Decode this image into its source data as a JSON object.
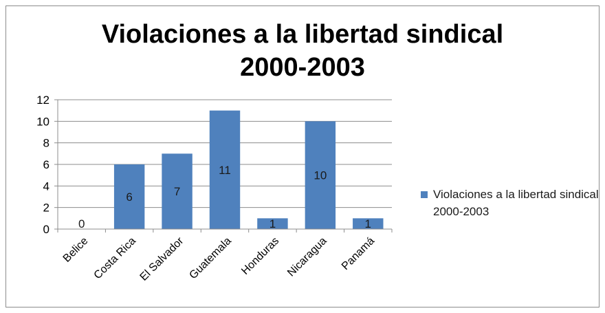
{
  "chart_data": {
    "type": "bar",
    "title": "Violaciones a la libertad sindical\n2000-2003",
    "categories": [
      "Belice",
      "Costa Rica",
      "El Salvador",
      "Guatemala",
      "Honduras",
      "Nicaragua",
      "Panamá"
    ],
    "series": [
      {
        "name": "Violaciones a la libertad sindical 2000-2003",
        "values": [
          0,
          6,
          7,
          11,
          1,
          10,
          1
        ]
      }
    ],
    "yticks": [
      "0",
      "2",
      "4",
      "6",
      "8",
      "10",
      "12"
    ],
    "ylim": [
      0,
      12
    ],
    "grid": true,
    "legend": "right",
    "colors": {
      "bar": "#4f81bd",
      "grid": "#8c8c8c"
    }
  }
}
